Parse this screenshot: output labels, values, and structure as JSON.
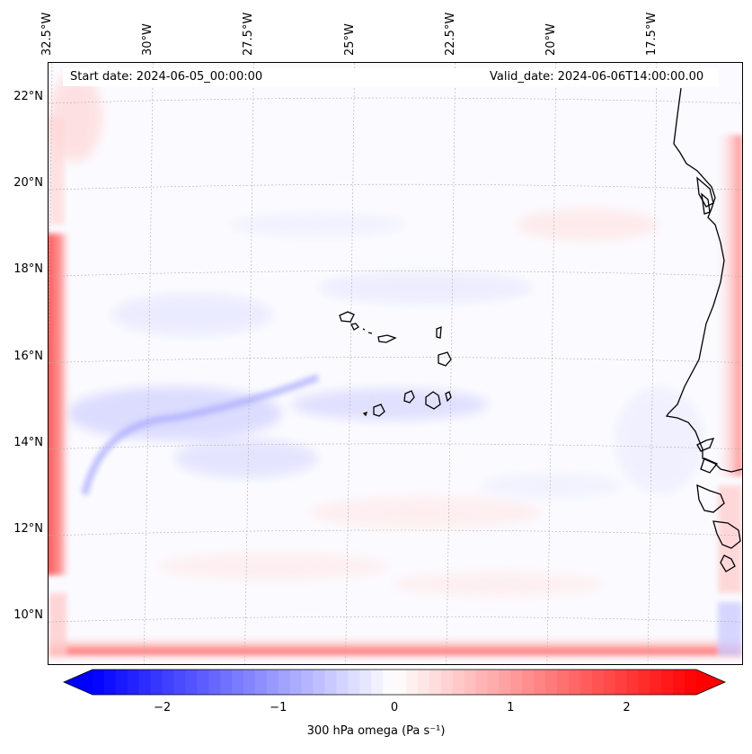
{
  "map": {
    "start_label": "Start date: 2024-06-05_00:00:00",
    "valid_label": "Valid_date: 2024-06-06T14:00:00.00",
    "lon_ticks": [
      "32.5°W",
      "30°W",
      "27.5°W",
      "25°W",
      "22.5°W",
      "20°W",
      "17.5°W"
    ],
    "lat_ticks": [
      "22°N",
      "20°N",
      "18°N",
      "16°N",
      "14°N",
      "12°N",
      "10°N"
    ],
    "lon_values": [
      -32.5,
      -30,
      -27.5,
      -25,
      -22.5,
      -20,
      -17.5
    ],
    "lat_values": [
      22,
      20,
      18,
      16,
      14,
      12,
      10
    ],
    "variable": "300 hPa omega",
    "colormap": "bwr",
    "colors": {
      "negative": "#0000ff",
      "zero": "#ffffff",
      "positive": "#ff0000",
      "coastline": "#000000"
    }
  },
  "colorbar": {
    "label": "300 hPa omega (Pa s⁻¹)",
    "ticks": [
      "−2",
      "−1",
      "0",
      "1",
      "2"
    ],
    "tick_values": [
      -2,
      -1,
      0,
      1,
      2
    ],
    "range": [
      -2.6,
      2.6
    ],
    "extend": "both"
  }
}
